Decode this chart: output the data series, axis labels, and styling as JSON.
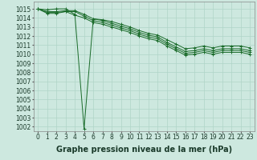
{
  "bg_color": "#cde8df",
  "grid_color": "#b0d4c8",
  "line_color": "#1a6b2a",
  "xlabel": "Graphe pression niveau de la mer (hPa)",
  "xlabel_fontsize": 7,
  "tick_fontsize": 5.5,
  "xlim": [
    -0.5,
    23.5
  ],
  "ylim": [
    1001.5,
    1015.8
  ],
  "yticks": [
    1002,
    1003,
    1004,
    1005,
    1006,
    1007,
    1008,
    1009,
    1010,
    1011,
    1012,
    1013,
    1014,
    1015
  ],
  "xticks": [
    0,
    1,
    2,
    3,
    4,
    5,
    6,
    7,
    8,
    9,
    10,
    11,
    12,
    13,
    14,
    15,
    16,
    17,
    18,
    19,
    20,
    21,
    22,
    23
  ],
  "series": [
    [
      1015.0,
      1014.7,
      1014.7,
      1014.8,
      1014.8,
      1014.4,
      1013.9,
      1013.7,
      1013.4,
      1013.1,
      1012.8,
      1012.4,
      1012.1,
      1011.9,
      1011.3,
      1010.8,
      1010.3,
      1010.4,
      1010.6,
      1010.4,
      1010.6,
      1010.6,
      1010.6,
      1010.4
    ],
    [
      1015.0,
      1014.6,
      1014.6,
      1014.7,
      1014.7,
      1014.2,
      1013.7,
      1013.5,
      1013.2,
      1012.9,
      1012.6,
      1012.2,
      1011.9,
      1011.7,
      1011.1,
      1010.6,
      1010.1,
      1010.2,
      1010.4,
      1010.2,
      1010.4,
      1010.4,
      1010.4,
      1010.2
    ],
    [
      1015.0,
      1014.5,
      1014.5,
      1014.7,
      1014.3,
      1014.0,
      1013.5,
      1013.3,
      1013.0,
      1012.7,
      1012.4,
      1012.0,
      1011.7,
      1011.5,
      1010.9,
      1010.4,
      1009.9,
      1010.0,
      1010.2,
      1010.0,
      1010.2,
      1010.2,
      1010.2,
      1010.0
    ],
    [
      1015.0,
      1014.9,
      1015.0,
      1015.0,
      1014.4,
      1001.8,
      1013.9,
      1013.8,
      1013.6,
      1013.3,
      1013.0,
      1012.6,
      1012.3,
      1012.1,
      1011.6,
      1011.1,
      1010.6,
      1010.7,
      1010.9,
      1010.7,
      1010.9,
      1010.9,
      1010.9,
      1010.7
    ]
  ]
}
